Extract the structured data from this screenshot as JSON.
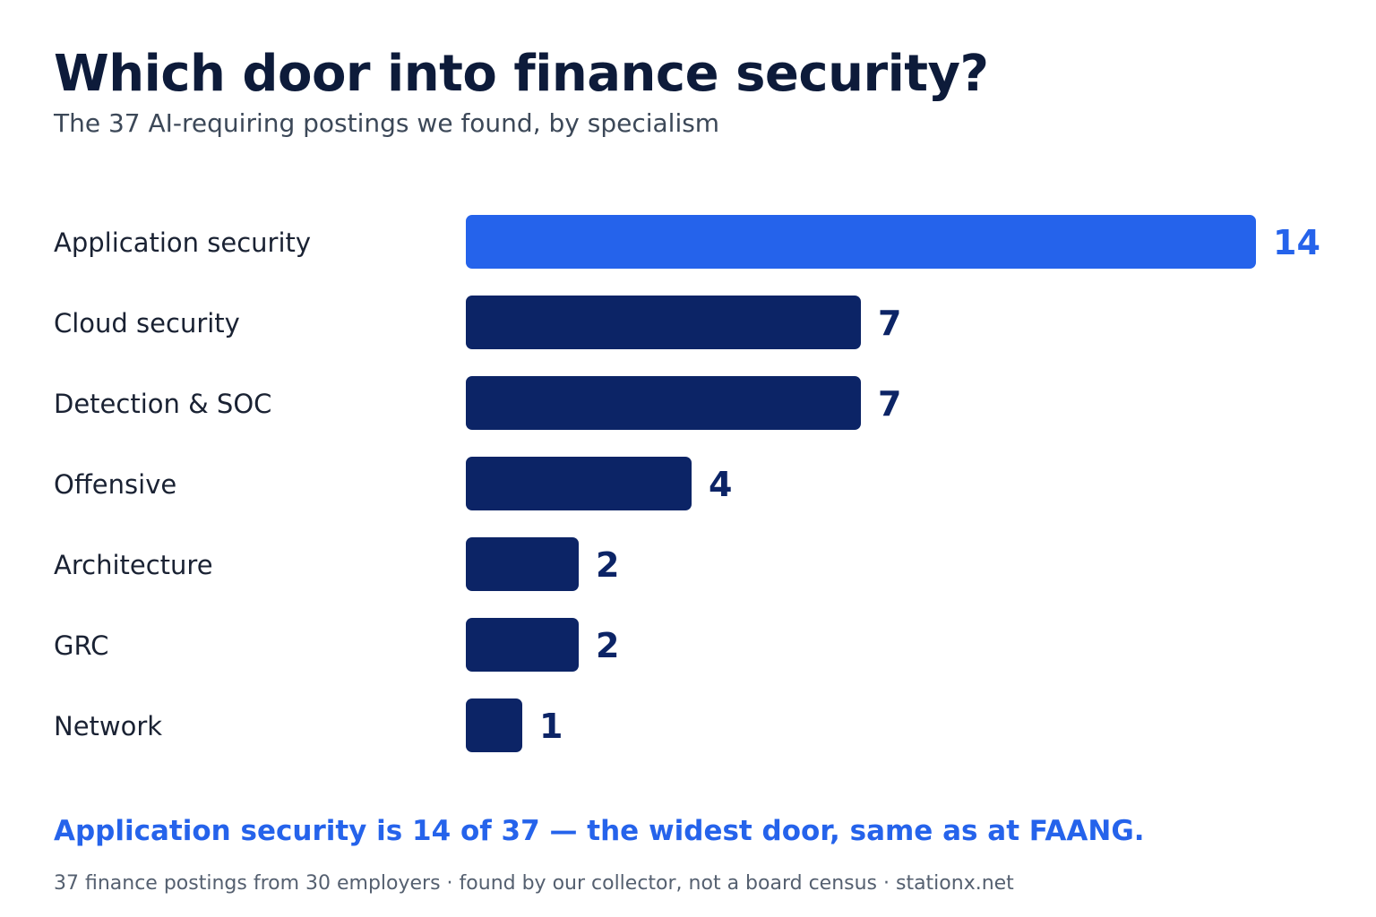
{
  "title": "Which door into finance security?",
  "subtitle": "The 37 AI-requiring postings we found, by specialism",
  "takeaway": "Application security is 14 of 37 — the widest door, same as at FAANG.",
  "source": "37 finance postings from 30 employers · found by our collector, not a board census · stationx.net",
  "colors": {
    "highlight": "#2563eb",
    "default": "#0c2466",
    "category_label": "#1a2233"
  },
  "chart_data": {
    "type": "bar",
    "orientation": "horizontal",
    "categories": [
      "Application security",
      "Cloud security",
      "Detection & SOC",
      "Offensive",
      "Architecture",
      "GRC",
      "Network"
    ],
    "values": [
      14,
      7,
      7,
      4,
      2,
      2,
      1
    ],
    "highlight_category": "Application security",
    "xlim": [
      0,
      14
    ],
    "grid": false,
    "axes_visible": false,
    "data_labels": true
  }
}
